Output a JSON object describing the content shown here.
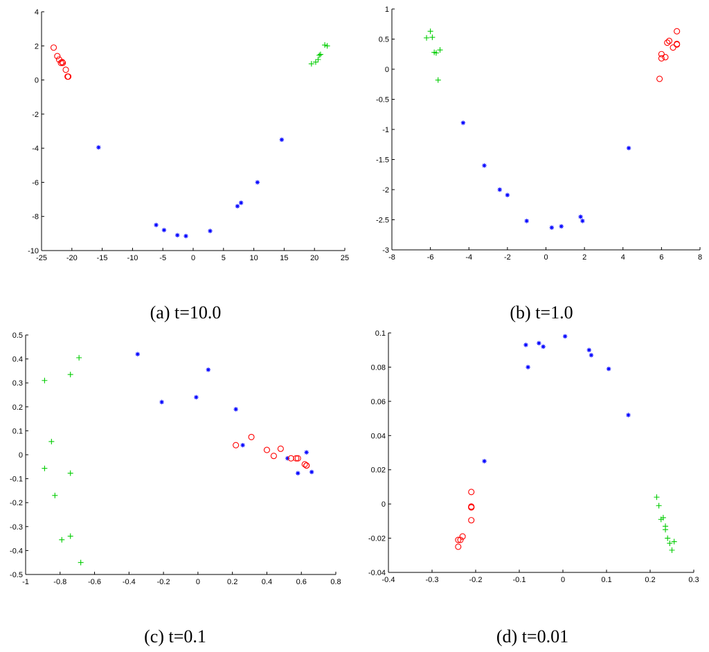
{
  "colors": {
    "circle": "#ff0000",
    "star": "#0000ff",
    "plus": "#00cc00",
    "axis": "#000000"
  },
  "chart_data": [
    {
      "type": "scatter",
      "caption": "(a) t=10.0",
      "xlim": [
        -25,
        25
      ],
      "ylim": [
        -10,
        4
      ],
      "xticks": [
        "-25",
        "-20",
        "-15",
        "-10",
        "-5",
        "0",
        "5",
        "10",
        "15",
        "20",
        "25"
      ],
      "yticks": [
        "-10",
        "-8",
        "-6",
        "-4",
        "-2",
        "0",
        "2",
        "4"
      ],
      "series": [
        {
          "marker": "circle",
          "x": [
            -23.0,
            -22.4,
            -22.1,
            -21.8,
            -21.6,
            -21.5,
            -21.0,
            -20.7,
            -20.6
          ],
          "y": [
            1.9,
            1.4,
            1.2,
            1.0,
            1.05,
            1.0,
            0.6,
            0.2,
            0.2
          ]
        },
        {
          "marker": "plus",
          "x": [
            19.5,
            20.2,
            20.6,
            20.8,
            21.0,
            21.7,
            22.1
          ],
          "y": [
            0.95,
            1.05,
            1.2,
            1.45,
            1.5,
            2.05,
            2.0
          ]
        },
        {
          "marker": "star",
          "x": [
            -15.6,
            -6.1,
            -4.8,
            -2.6,
            -1.2,
            2.8,
            7.3,
            7.9,
            10.6,
            14.6
          ],
          "y": [
            -3.95,
            -8.5,
            -8.8,
            -9.1,
            -9.15,
            -8.85,
            -7.4,
            -7.2,
            -6.0,
            -3.5
          ]
        }
      ]
    },
    {
      "type": "scatter",
      "caption": "(b) t=1.0",
      "xlim": [
        -8,
        8
      ],
      "ylim": [
        -3,
        1
      ],
      "xticks": [
        "-8",
        "-6",
        "-4",
        "-2",
        "0",
        "2",
        "4",
        "6",
        "8"
      ],
      "yticks": [
        "-3",
        "-2.5",
        "-2",
        "-1.5",
        "-1",
        "-0.5",
        "0",
        "0.5",
        "1"
      ],
      "series": [
        {
          "marker": "plus",
          "x": [
            -6.2,
            -6.0,
            -5.9,
            -5.8,
            -5.7,
            -5.5,
            -5.6
          ],
          "y": [
            0.52,
            0.63,
            0.53,
            0.28,
            0.27,
            0.32,
            -0.18
          ]
        },
        {
          "marker": "circle",
          "x": [
            5.9,
            6.0,
            6.0,
            6.2,
            6.3,
            6.4,
            6.6,
            6.8,
            6.8,
            6.8
          ],
          "y": [
            -0.16,
            0.18,
            0.25,
            0.2,
            0.44,
            0.47,
            0.36,
            0.41,
            0.42,
            0.63
          ]
        },
        {
          "marker": "star",
          "x": [
            -4.3,
            -3.2,
            -2.4,
            -2.0,
            -1.0,
            0.3,
            0.8,
            1.8,
            1.9,
            4.3
          ],
          "y": [
            -0.89,
            -1.6,
            -2.0,
            -2.09,
            -2.52,
            -2.63,
            -2.61,
            -2.45,
            -2.52,
            -1.31
          ]
        }
      ]
    },
    {
      "type": "scatter",
      "caption": "(c) t=0.1",
      "xlim": [
        -1,
        0.8
      ],
      "ylim": [
        -0.5,
        0.5
      ],
      "xticks": [
        "-1",
        "-0.8",
        "-0.6",
        "-0.4",
        "-0.2",
        "0",
        "0.2",
        "0.4",
        "0.6",
        "0.8"
      ],
      "yticks": [
        "-0.5",
        "-0.4",
        "-0.3",
        "-0.2",
        "-0.1",
        "0",
        "0.1",
        "0.2",
        "0.3",
        "0.4",
        "0.5"
      ],
      "series": [
        {
          "marker": "plus",
          "x": [
            -0.89,
            -0.89,
            -0.85,
            -0.83,
            -0.79,
            -0.74,
            -0.74,
            -0.74,
            -0.69,
            -0.68
          ],
          "y": [
            0.31,
            -0.057,
            0.055,
            -0.17,
            -0.355,
            0.335,
            -0.077,
            -0.34,
            0.405,
            -0.45
          ]
        },
        {
          "marker": "star",
          "x": [
            -0.35,
            -0.21,
            -0.01,
            0.06,
            0.22,
            0.26,
            0.52,
            0.58,
            0.63,
            0.66
          ],
          "y": [
            0.42,
            0.22,
            0.24,
            0.355,
            0.19,
            0.04,
            -0.015,
            -0.077,
            0.01,
            -0.072
          ]
        },
        {
          "marker": "circle",
          "x": [
            0.22,
            0.31,
            0.4,
            0.44,
            0.48,
            0.54,
            0.57,
            0.58,
            0.62,
            0.63,
            0.63
          ],
          "y": [
            0.04,
            0.074,
            0.02,
            -0.005,
            0.025,
            -0.015,
            -0.015,
            -0.015,
            -0.04,
            -0.045,
            -0.045
          ]
        }
      ]
    },
    {
      "type": "scatter",
      "caption": "(d) t=0.01",
      "xlim": [
        -0.4,
        0.3
      ],
      "ylim": [
        -0.04,
        0.1
      ],
      "xticks": [
        "-0.4",
        "-0.3",
        "-0.2",
        "-0.1",
        "0",
        "0.1",
        "0.2",
        "0.3"
      ],
      "yticks": [
        "-0.04",
        "-0.02",
        "0",
        "0.02",
        "0.04",
        "0.06",
        "0.08",
        "0.1"
      ],
      "series": [
        {
          "marker": "circle",
          "x": [
            -0.24,
            -0.24,
            -0.235,
            -0.23,
            -0.21,
            -0.21,
            -0.21,
            -0.21,
            -0.21
          ],
          "y": [
            -0.021,
            -0.025,
            -0.021,
            -0.019,
            -0.0095,
            -0.0015,
            -0.002,
            -0.002,
            0.007
          ]
        },
        {
          "marker": "star",
          "x": [
            -0.18,
            -0.085,
            -0.08,
            -0.055,
            -0.045,
            0.005,
            0.06,
            0.065,
            0.105,
            0.15
          ],
          "y": [
            0.025,
            0.093,
            0.08,
            0.094,
            0.092,
            0.098,
            0.09,
            0.087,
            0.079,
            0.052
          ]
        },
        {
          "marker": "plus",
          "x": [
            0.215,
            0.22,
            0.225,
            0.23,
            0.235,
            0.235,
            0.24,
            0.245,
            0.25,
            0.255
          ],
          "y": [
            0.004,
            -0.001,
            -0.009,
            -0.008,
            -0.013,
            -0.015,
            -0.02,
            -0.023,
            -0.027,
            -0.022
          ]
        }
      ]
    }
  ]
}
